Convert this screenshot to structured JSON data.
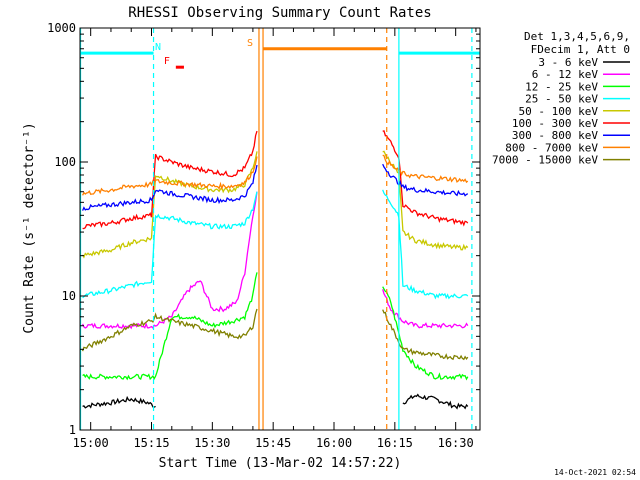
{
  "chart_data": {
    "type": "line",
    "title": "RHESSI Observing Summary Count Rates",
    "xlabel": "Start Time (13-Mar-02 14:57:22)",
    "ylabel": "Count Rate (s⁻¹ detector⁻¹)",
    "y_scale": "log",
    "ylim": [
      1,
      1000
    ],
    "xlim": [
      "14:57:22",
      "16:36:00"
    ],
    "x_ticks": [
      "15:00",
      "15:15",
      "15:30",
      "15:45",
      "16:00",
      "16:15",
      "16:30"
    ],
    "y_ticks": [
      "1",
      "10",
      "100",
      "1000"
    ],
    "legend_title": [
      "Det 1,3,4,5,6,9,",
      "FDecim 1, Att 0"
    ],
    "legend_position": "top-right",
    "timestamp": "14-Oct-2021 02:54",
    "series": [
      {
        "name": "3 - 6 keV",
        "color": "#000000",
        "segments": [
          {
            "x": [
              "14:58",
              "15:05",
              "15:10",
              "15:14",
              "15:16"
            ],
            "y": [
              1.5,
              1.6,
              1.7,
              1.6,
              1.5
            ]
          },
          {
            "x": [
              "16:17",
              "16:20",
              "16:25",
              "16:30",
              "16:33"
            ],
            "y": [
              1.6,
              1.8,
              1.7,
              1.5,
              1.5
            ]
          }
        ]
      },
      {
        "name": "6 - 12 keV",
        "color": "#ff00ff",
        "segments": [
          {
            "x": [
              "14:58",
              "15:05",
              "15:10",
              "15:16",
              "15:20",
              "15:24",
              "15:27",
              "15:30",
              "15:33",
              "15:36",
              "15:38",
              "15:39",
              "15:40",
              "15:41"
            ],
            "y": [
              6,
              6,
              6,
              6,
              7,
              11,
              13,
              8,
              8,
              9,
              15,
              25,
              40,
              60
            ]
          },
          {
            "x": [
              "16:12",
              "16:14",
              "16:17",
              "16:20",
              "16:25",
              "16:30",
              "16:33"
            ],
            "y": [
              11,
              8,
              6.5,
              6,
              6,
              6,
              6
            ]
          }
        ]
      },
      {
        "name": "12 - 25 keV",
        "color": "#00ff00",
        "segments": [
          {
            "x": [
              "14:58",
              "15:05",
              "15:10",
              "15:16",
              "15:20",
              "15:25",
              "15:30",
              "15:35",
              "15:38",
              "15:40",
              "15:41"
            ],
            "y": [
              2.5,
              2.5,
              2.5,
              2.5,
              7,
              7,
              6,
              6.5,
              7,
              10,
              15
            ]
          },
          {
            "x": [
              "16:12",
              "16:14",
              "16:17",
              "16:20",
              "16:25",
              "16:30",
              "16:33"
            ],
            "y": [
              12,
              9,
              4,
              3,
              2.5,
              2.5,
              2.5
            ]
          }
        ]
      },
      {
        "name": "25 - 50 keV",
        "color": "#00ffff",
        "segments": [
          {
            "x": [
              "14:58",
              "15:05",
              "15:10",
              "15:15",
              "15:16",
              "15:20",
              "15:25",
              "15:30",
              "15:35",
              "15:38",
              "15:40",
              "15:41"
            ],
            "y": [
              10,
              11,
              12,
              13,
              40,
              38,
              35,
              33,
              33,
              35,
              45,
              60
            ]
          },
          {
            "x": [
              "16:12",
              "16:14",
              "16:16",
              "16:17",
              "16:20",
              "16:25",
              "16:30",
              "16:33"
            ],
            "y": [
              60,
              50,
              40,
              12,
              11,
              10,
              10,
              10
            ]
          }
        ]
      },
      {
        "name": "50 - 100 keV",
        "color": "#c8c800",
        "segments": [
          {
            "x": [
              "14:58",
              "15:05",
              "15:10",
              "15:15",
              "15:16",
              "15:20",
              "15:25",
              "15:30",
              "15:35",
              "15:38",
              "15:40",
              "15:41"
            ],
            "y": [
              20,
              22,
              25,
              27,
              80,
              72,
              66,
              62,
              62,
              68,
              90,
              120
            ]
          },
          {
            "x": [
              "16:12",
              "16:14",
              "16:16",
              "16:17",
              "16:20",
              "16:25",
              "16:30",
              "16:33"
            ],
            "y": [
              120,
              100,
              80,
              30,
              26,
              24,
              23,
              23
            ]
          }
        ]
      },
      {
        "name": "100 - 300 keV",
        "color": "#ff0000",
        "segments": [
          {
            "x": [
              "14:58",
              "15:05",
              "15:10",
              "15:15",
              "15:16",
              "15:20",
              "15:25",
              "15:30",
              "15:35",
              "15:38",
              "15:40",
              "15:41"
            ],
            "y": [
              33,
              35,
              38,
              40,
              110,
              100,
              90,
              85,
              80,
              90,
              120,
              170
            ]
          },
          {
            "x": [
              "16:12",
              "16:14",
              "16:16",
              "16:17",
              "16:20",
              "16:25",
              "16:30",
              "16:33"
            ],
            "y": [
              170,
              140,
              110,
              48,
              42,
              38,
              36,
              35
            ]
          }
        ]
      },
      {
        "name": "300 - 800 keV",
        "color": "#0000ff",
        "segments": [
          {
            "x": [
              "14:58",
              "15:05",
              "15:10",
              "15:15",
              "15:16",
              "15:20",
              "15:25",
              "15:30",
              "15:35",
              "15:38",
              "15:40",
              "15:41"
            ],
            "y": [
              45,
              48,
              50,
              52,
              62,
              58,
              55,
              52,
              52,
              56,
              70,
              95
            ]
          },
          {
            "x": [
              "16:12",
              "16:14",
              "16:16",
              "16:17",
              "16:20",
              "16:25",
              "16:30",
              "16:33"
            ],
            "y": [
              95,
              80,
              70,
              65,
              62,
              60,
              58,
              58
            ]
          }
        ]
      },
      {
        "name": "800 - 7000 keV",
        "color": "#ff8000",
        "segments": [
          {
            "x": [
              "14:58",
              "15:05",
              "15:10",
              "15:15",
              "15:16",
              "15:20",
              "15:25",
              "15:30",
              "15:35",
              "15:38",
              "15:40",
              "15:41"
            ],
            "y": [
              58,
              62,
              66,
              68,
              72,
              70,
              68,
              66,
              66,
              70,
              85,
              110
            ]
          },
          {
            "x": [
              "16:12",
              "16:14",
              "16:16",
              "16:17",
              "16:20",
              "16:25",
              "16:30",
              "16:33"
            ],
            "y": [
              110,
              95,
              85,
              82,
              78,
              76,
              74,
              72
            ]
          }
        ]
      },
      {
        "name": "7000 - 15000 keV",
        "color": "#808000",
        "segments": [
          {
            "x": [
              "14:58",
              "15:05",
              "15:10",
              "15:15",
              "15:16",
              "15:20",
              "15:25",
              "15:30",
              "15:35",
              "15:38",
              "15:40",
              "15:41"
            ],
            "y": [
              4,
              5,
              6,
              6.5,
              7,
              6.5,
              6,
              5.5,
              5,
              5,
              6,
              8
            ]
          },
          {
            "x": [
              "16:12",
              "16:14",
              "16:17",
              "16:20",
              "16:25",
              "16:30",
              "16:33"
            ],
            "y": [
              8,
              6,
              4,
              3.8,
              3.6,
              3.5,
              3.5
            ]
          }
        ]
      }
    ],
    "flags": [
      {
        "label": "N",
        "color": "#00ffff",
        "bar_y": 650,
        "segments": [
          [
            "14:57:22",
            "15:15:30"
          ],
          [
            "16:16:00",
            "16:36:00"
          ]
        ]
      },
      {
        "label": "S",
        "color": "#ff8000",
        "bar_y": 700,
        "segments": [
          [
            "15:42:30",
            "16:13:00"
          ]
        ]
      },
      {
        "label": "F",
        "color": "#ff0000",
        "bar_y": 510,
        "segments": [
          [
            "15:21:00",
            "15:23:00"
          ]
        ]
      }
    ],
    "markers": [
      {
        "time": "14:57:30",
        "color": "#00ffff",
        "style": "solid"
      },
      {
        "time": "15:15:30",
        "color": "#00ffff",
        "style": "dashed"
      },
      {
        "time": "15:41:30",
        "color": "#ff8000",
        "style": "solid"
      },
      {
        "time": "15:42:30",
        "color": "#ff8000",
        "style": "solid"
      },
      {
        "time": "16:13:00",
        "color": "#ff8000",
        "style": "dashed"
      },
      {
        "time": "16:16:00",
        "color": "#00ffff",
        "style": "solid"
      },
      {
        "time": "16:34:00",
        "color": "#00ffff",
        "style": "dashed"
      }
    ]
  }
}
